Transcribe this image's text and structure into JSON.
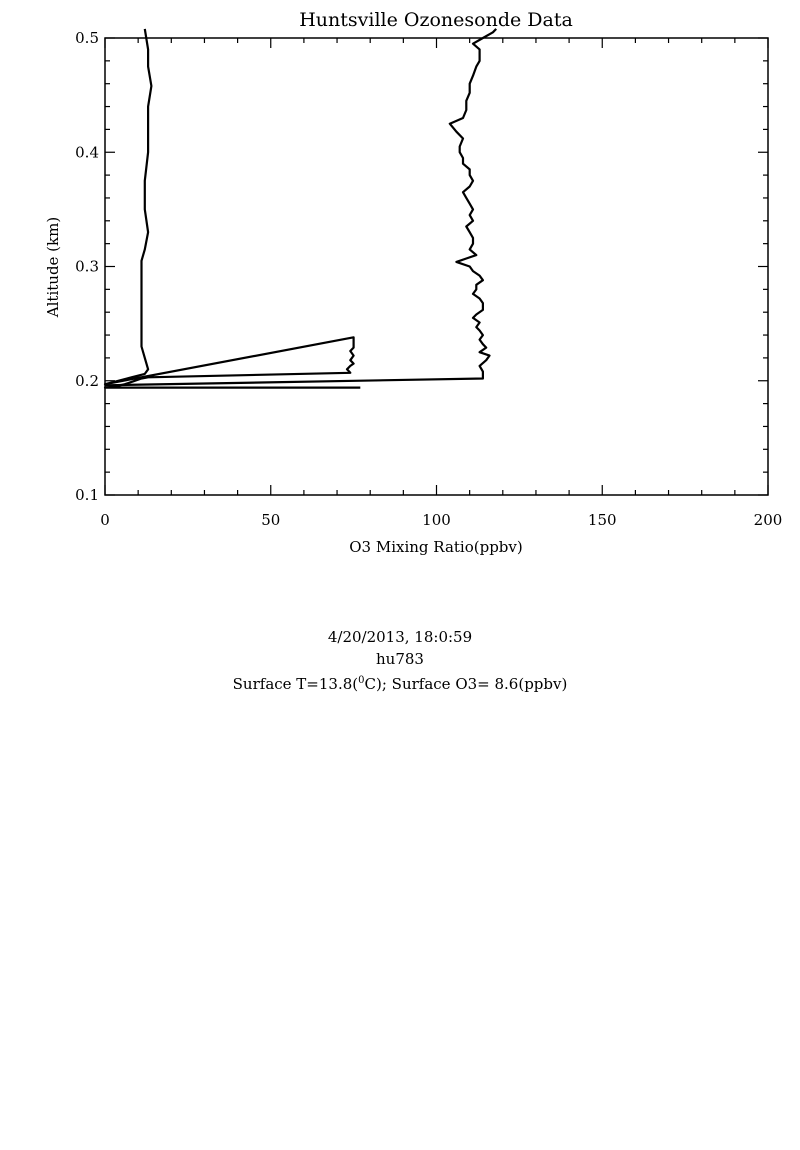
{
  "chart_data": {
    "type": "line",
    "title": "Huntsville Ozonesonde Data",
    "xlabel": "O3 Mixing Ratio(ppbv)",
    "ylabel": "Altitude (km)",
    "xlim": [
      0,
      200
    ],
    "ylim": [
      0.1,
      0.5
    ],
    "x_ticks": [
      "0",
      "50",
      "100",
      "150",
      "200"
    ],
    "y_ticks": [
      "0.1",
      "0.2",
      "0.3",
      "0.4",
      "0.5"
    ],
    "grid": false,
    "legend": "none",
    "line_color": "#000000",
    "series": [
      {
        "points": [
          [
            77,
            0.194
          ],
          [
            0,
            0.194
          ],
          [
            3,
            0.195
          ],
          [
            6,
            0.197
          ],
          [
            9,
            0.2
          ],
          [
            11,
            0.202
          ],
          [
            13,
            0.203
          ],
          [
            74,
            0.207
          ],
          [
            73,
            0.21
          ],
          [
            74,
            0.213
          ],
          [
            75,
            0.215
          ],
          [
            74,
            0.218
          ],
          [
            75,
            0.222
          ],
          [
            74,
            0.226
          ],
          [
            75,
            0.229
          ],
          [
            75,
            0.232
          ],
          [
            75,
            0.238
          ],
          [
            0,
            0.197
          ],
          [
            4,
            0.2
          ],
          [
            8,
            0.203
          ],
          [
            12,
            0.206
          ],
          [
            13,
            0.21
          ],
          [
            12,
            0.22
          ],
          [
            11,
            0.23
          ],
          [
            11,
            0.24
          ],
          [
            11,
            0.25
          ],
          [
            11,
            0.27
          ],
          [
            11,
            0.29
          ],
          [
            11,
            0.305
          ],
          [
            12,
            0.315
          ],
          [
            13,
            0.33
          ],
          [
            12,
            0.35
          ],
          [
            12,
            0.375
          ],
          [
            13,
            0.4
          ],
          [
            13,
            0.425
          ],
          [
            13,
            0.44
          ],
          [
            14,
            0.458
          ],
          [
            13,
            0.475
          ],
          [
            13,
            0.49
          ],
          [
            12,
            0.508
          ]
        ]
      },
      {
        "points": [
          [
            0,
            0.196
          ],
          [
            114,
            0.202
          ],
          [
            114,
            0.208
          ],
          [
            113,
            0.213
          ],
          [
            115,
            0.218
          ],
          [
            116,
            0.222
          ],
          [
            113,
            0.225
          ],
          [
            115,
            0.229
          ],
          [
            114,
            0.232
          ],
          [
            113,
            0.236
          ],
          [
            114,
            0.24
          ],
          [
            113,
            0.244
          ],
          [
            112,
            0.247
          ],
          [
            113,
            0.251
          ],
          [
            111,
            0.255
          ],
          [
            112,
            0.258
          ],
          [
            114,
            0.262
          ],
          [
            114,
            0.268
          ],
          [
            113,
            0.272
          ],
          [
            111,
            0.276
          ],
          [
            112,
            0.28
          ],
          [
            112,
            0.284
          ],
          [
            114,
            0.288
          ],
          [
            113,
            0.292
          ],
          [
            111,
            0.296
          ],
          [
            110,
            0.3
          ],
          [
            106,
            0.304
          ],
          [
            109,
            0.307
          ],
          [
            112,
            0.31
          ],
          [
            110,
            0.315
          ],
          [
            111,
            0.32
          ],
          [
            111,
            0.325
          ],
          [
            110,
            0.33
          ],
          [
            109,
            0.335
          ],
          [
            111,
            0.34
          ],
          [
            110,
            0.345
          ],
          [
            111,
            0.35
          ],
          [
            110,
            0.355
          ],
          [
            109,
            0.36
          ],
          [
            108,
            0.365
          ],
          [
            110,
            0.37
          ],
          [
            111,
            0.375
          ],
          [
            110,
            0.38
          ],
          [
            110,
            0.385
          ],
          [
            108,
            0.39
          ],
          [
            108,
            0.395
          ],
          [
            107,
            0.4
          ],
          [
            107,
            0.405
          ],
          [
            108,
            0.412
          ],
          [
            106,
            0.418
          ],
          [
            104,
            0.425
          ],
          [
            108,
            0.43
          ],
          [
            109,
            0.437
          ],
          [
            109,
            0.445
          ],
          [
            110,
            0.452
          ],
          [
            110,
            0.46
          ],
          [
            111,
            0.467
          ],
          [
            112,
            0.475
          ],
          [
            113,
            0.48
          ],
          [
            113,
            0.485
          ],
          [
            113,
            0.49
          ],
          [
            111,
            0.495
          ],
          [
            114,
            0.5
          ],
          [
            117,
            0.505
          ],
          [
            118,
            0.508
          ]
        ]
      }
    ]
  },
  "footer": {
    "datetime": "4/20/2013, 18:0:59",
    "station": "hu783",
    "surface_prefix": "Surface T=13.8(",
    "surface_sup": "0",
    "surface_suffix": "C); Surface O3= 8.6(ppbv)"
  }
}
